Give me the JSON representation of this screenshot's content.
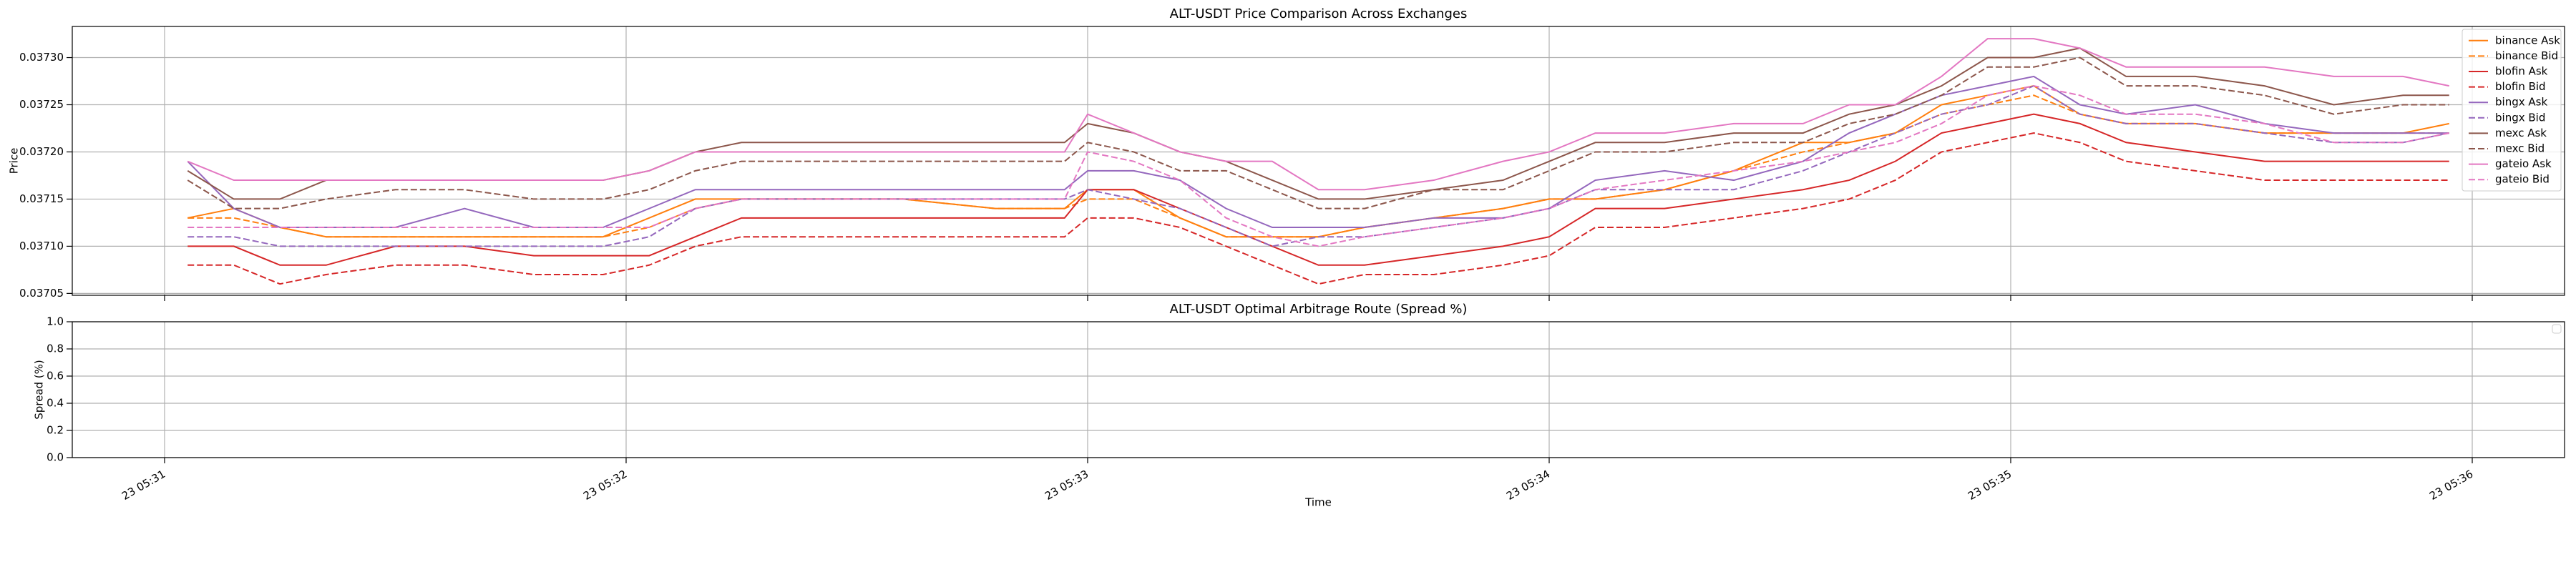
{
  "chart_data": [
    {
      "type": "line",
      "title": "ALT-USDT Price Comparison Across Exchanges",
      "ylabel": "Price",
      "x": [
        31.05,
        31.15,
        31.25,
        31.35,
        31.5,
        31.65,
        31.8,
        31.95,
        32.05,
        32.15,
        32.25,
        32.4,
        32.6,
        32.8,
        32.95,
        33.0,
        33.1,
        33.2,
        33.3,
        33.4,
        33.5,
        33.6,
        33.75,
        33.9,
        34.0,
        34.1,
        34.25,
        34.4,
        34.55,
        34.65,
        34.75,
        34.85,
        34.95,
        35.05,
        35.15,
        35.25,
        35.4,
        35.55,
        35.7,
        35.85,
        35.95
      ],
      "xlim": [
        30.8,
        36.2
      ],
      "ylim": [
        0.037048,
        0.037333
      ],
      "yticks": [
        0.03705,
        {
          "value": 0.0371,
          "label": "0.03710"
        },
        0.03715,
        {
          "value": 0.0372,
          "label": "0.03720"
        },
        0.03725,
        {
          "value": 0.0373,
          "label": "0.03730"
        }
      ],
      "grid": true,
      "legend": "upper right",
      "series": [
        {
          "name": "binance Ask",
          "color": "#ff7f0e",
          "linestyle": "solid",
          "values": [
            0.03713,
            0.03714,
            0.03712,
            0.03711,
            0.03711,
            0.03711,
            0.03711,
            0.03711,
            0.03713,
            0.03715,
            0.03715,
            0.03715,
            0.03715,
            0.03714,
            0.03714,
            0.03716,
            0.03716,
            0.03713,
            0.03711,
            0.03711,
            0.03711,
            0.03712,
            0.03713,
            0.03714,
            0.03715,
            0.03715,
            0.03716,
            0.03718,
            0.03721,
            0.03721,
            0.03722,
            0.03725,
            0.03726,
            0.03727,
            0.03724,
            0.03723,
            0.03723,
            0.03722,
            0.03722,
            0.03722,
            0.03723
          ]
        },
        {
          "name": "binance Bid",
          "color": "#ff7f0e",
          "linestyle": "dashed",
          "values": [
            0.03713,
            0.03713,
            0.03712,
            0.03711,
            0.03711,
            0.03711,
            0.03711,
            0.03711,
            0.03712,
            0.03714,
            0.03715,
            0.03715,
            0.03715,
            0.03714,
            0.03714,
            0.03715,
            0.03715,
            0.03713,
            0.03711,
            0.03711,
            0.03711,
            0.03712,
            0.03713,
            0.03714,
            0.03715,
            0.03715,
            0.03716,
            0.03718,
            0.0372,
            0.03721,
            0.03722,
            0.03724,
            0.03725,
            0.03726,
            0.03724,
            0.03723,
            0.03723,
            0.03722,
            0.03722,
            0.03722,
            0.03722
          ]
        },
        {
          "name": "blofin Ask",
          "color": "#d62728",
          "linestyle": "solid",
          "values": [
            0.0371,
            0.0371,
            0.03708,
            0.03708,
            0.0371,
            0.0371,
            0.03709,
            0.03709,
            0.03709,
            0.03711,
            0.03713,
            0.03713,
            0.03713,
            0.03713,
            0.03713,
            0.03716,
            0.03716,
            0.03714,
            0.03712,
            0.0371,
            0.03708,
            0.03708,
            0.03709,
            0.0371,
            0.03711,
            0.03714,
            0.03714,
            0.03715,
            0.03716,
            0.03717,
            0.03719,
            0.03722,
            0.03723,
            0.03724,
            0.03723,
            0.03721,
            0.0372,
            0.03719,
            0.03719,
            0.03719,
            0.03719
          ]
        },
        {
          "name": "blofin Bid",
          "color": "#d62728",
          "linestyle": "dashed",
          "values": [
            0.03708,
            0.03708,
            0.03706,
            0.03707,
            0.03708,
            0.03708,
            0.03707,
            0.03707,
            0.03708,
            0.0371,
            0.03711,
            0.03711,
            0.03711,
            0.03711,
            0.03711,
            0.03713,
            0.03713,
            0.03712,
            0.0371,
            0.03708,
            0.03706,
            0.03707,
            0.03707,
            0.03708,
            0.03709,
            0.03712,
            0.03712,
            0.03713,
            0.03714,
            0.03715,
            0.03717,
            0.0372,
            0.03721,
            0.03722,
            0.03721,
            0.03719,
            0.03718,
            0.03717,
            0.03717,
            0.03717,
            0.03717
          ]
        },
        {
          "name": "bingx Ask",
          "color": "#9467bd",
          "linestyle": "solid",
          "values": [
            0.03719,
            0.03714,
            0.03712,
            0.03712,
            0.03712,
            0.03714,
            0.03712,
            0.03712,
            0.03714,
            0.03716,
            0.03716,
            0.03716,
            0.03716,
            0.03716,
            0.03716,
            0.03718,
            0.03718,
            0.03717,
            0.03714,
            0.03712,
            0.03712,
            0.03712,
            0.03713,
            0.03713,
            0.03714,
            0.03717,
            0.03718,
            0.03717,
            0.03719,
            0.03722,
            0.03724,
            0.03726,
            0.03727,
            0.03728,
            0.03725,
            0.03724,
            0.03725,
            0.03723,
            0.03722,
            0.03722,
            0.03722
          ]
        },
        {
          "name": "bingx Bid",
          "color": "#9467bd",
          "linestyle": "dashed",
          "values": [
            0.03711,
            0.03711,
            0.0371,
            0.0371,
            0.0371,
            0.0371,
            0.0371,
            0.0371,
            0.03711,
            0.03714,
            0.03715,
            0.03715,
            0.03715,
            0.03715,
            0.03715,
            0.03716,
            0.03715,
            0.03714,
            0.03712,
            0.0371,
            0.03711,
            0.03711,
            0.03712,
            0.03713,
            0.03714,
            0.03716,
            0.03716,
            0.03716,
            0.03718,
            0.0372,
            0.03722,
            0.03724,
            0.03725,
            0.03727,
            0.03724,
            0.03723,
            0.03723,
            0.03722,
            0.03721,
            0.03721,
            0.03722
          ]
        },
        {
          "name": "mexc Ask",
          "color": "#8c564b",
          "linestyle": "solid",
          "values": [
            0.03718,
            0.03715,
            0.03715,
            0.03717,
            0.03717,
            0.03717,
            0.03717,
            0.03717,
            0.03718,
            0.0372,
            0.03721,
            0.03721,
            0.03721,
            0.03721,
            0.03721,
            0.03723,
            0.03722,
            0.0372,
            0.03719,
            0.03717,
            0.03715,
            0.03715,
            0.03716,
            0.03717,
            0.03719,
            0.03721,
            0.03721,
            0.03722,
            0.03722,
            0.03724,
            0.03725,
            0.03727,
            0.0373,
            0.0373,
            0.03731,
            0.03728,
            0.03728,
            0.03727,
            0.03725,
            0.03726,
            0.03726
          ]
        },
        {
          "name": "mexc Bid",
          "color": "#8c564b",
          "linestyle": "dashed",
          "values": [
            0.03717,
            0.03714,
            0.03714,
            0.03715,
            0.03716,
            0.03716,
            0.03715,
            0.03715,
            0.03716,
            0.03718,
            0.03719,
            0.03719,
            0.03719,
            0.03719,
            0.03719,
            0.03721,
            0.0372,
            0.03718,
            0.03718,
            0.03716,
            0.03714,
            0.03714,
            0.03716,
            0.03716,
            0.03718,
            0.0372,
            0.0372,
            0.03721,
            0.03721,
            0.03723,
            0.03724,
            0.03726,
            0.03729,
            0.03729,
            0.0373,
            0.03727,
            0.03727,
            0.03726,
            0.03724,
            0.03725,
            0.03725
          ]
        },
        {
          "name": "gateio Ask",
          "color": "#e377c2",
          "linestyle": "solid",
          "values": [
            0.03719,
            0.03717,
            0.03717,
            0.03717,
            0.03717,
            0.03717,
            0.03717,
            0.03717,
            0.03718,
            0.0372,
            0.0372,
            0.0372,
            0.0372,
            0.0372,
            0.0372,
            0.03724,
            0.03722,
            0.0372,
            0.03719,
            0.03719,
            0.03716,
            0.03716,
            0.03717,
            0.03719,
            0.0372,
            0.03722,
            0.03722,
            0.03723,
            0.03723,
            0.03725,
            0.03725,
            0.03728,
            0.03732,
            0.03732,
            0.03731,
            0.03729,
            0.03729,
            0.03729,
            0.03728,
            0.03728,
            0.03727
          ]
        },
        {
          "name": "gateio Bid",
          "color": "#e377c2",
          "linestyle": "dashed",
          "values": [
            0.03712,
            0.03712,
            0.03712,
            0.03712,
            0.03712,
            0.03712,
            0.03712,
            0.03712,
            0.03712,
            0.03714,
            0.03715,
            0.03715,
            0.03715,
            0.03715,
            0.03715,
            0.0372,
            0.03719,
            0.03717,
            0.03713,
            0.03711,
            0.0371,
            0.03711,
            0.03712,
            0.03713,
            0.03714,
            0.03716,
            0.03717,
            0.03718,
            0.03719,
            0.0372,
            0.03721,
            0.03723,
            0.03726,
            0.03727,
            0.03726,
            0.03724,
            0.03724,
            0.03723,
            0.03721,
            0.03721,
            0.03722
          ]
        }
      ]
    },
    {
      "type": "line",
      "title": "ALT-USDT Optimal Arbitrage Route (Spread %)",
      "ylabel": "Spread (%)",
      "xlabel": "Time",
      "xlim": [
        30.8,
        36.2
      ],
      "xticks": [
        {
          "value": 31,
          "label": "23 05:31"
        },
        {
          "value": 32,
          "label": "23 05:32"
        },
        {
          "value": 33,
          "label": "23 05:33"
        },
        {
          "value": 34,
          "label": "23 05:34"
        },
        {
          "value": 35,
          "label": "23 05:35"
        },
        {
          "value": 36,
          "label": "23 05:36"
        }
      ],
      "ylim": [
        0,
        1
      ],
      "yticks": [
        {
          "value": 0,
          "label": "0.0"
        },
        0.2,
        0.4,
        0.6,
        0.8,
        {
          "value": 1,
          "label": "1.0"
        }
      ],
      "grid": true,
      "legend": "upper right",
      "series": []
    }
  ]
}
